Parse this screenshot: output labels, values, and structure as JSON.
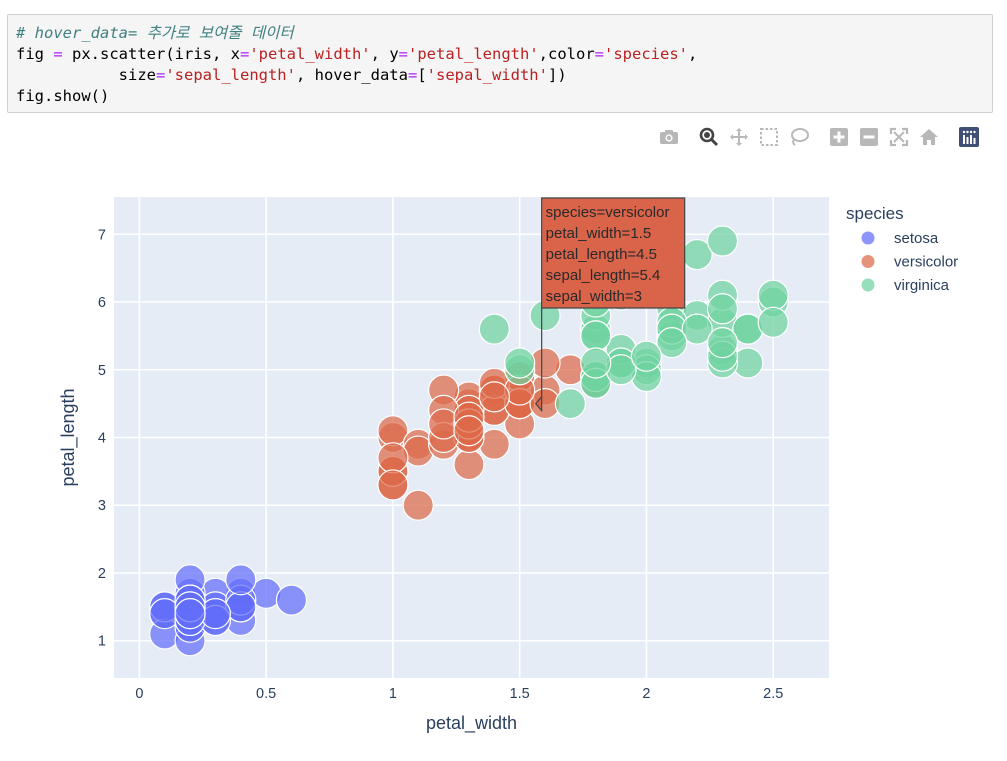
{
  "code": {
    "comment": "# hover_data= 추가로 보여줄 데이터",
    "line2_a": "fig ",
    "line2_eq": "=",
    "line2_b": " px.scatter(iris, x",
    "line2_eq2": "=",
    "line2_s1": "'petal_width'",
    "line2_c": ", y",
    "line2_eq3": "=",
    "line2_s2": "'petal_length'",
    "line2_d": ",color",
    "line2_eq4": "=",
    "line2_s3": "'species'",
    "line2_e": ",",
    "line3_a": "           size",
    "line3_eq": "=",
    "line3_s1": "'sepal_length'",
    "line3_b": ", hover_data",
    "line3_eq2": "=",
    "line3_c": "[",
    "line3_s2": "'sepal_width'",
    "line3_d": "])",
    "line4": "fig.show()"
  },
  "toolbar": {
    "items": [
      "camera-icon",
      "zoom-icon",
      "pan-icon",
      "box-select-icon",
      "lasso-select-icon",
      "zoom-in-icon",
      "zoom-out-icon",
      "autoscale-icon",
      "reset-axes-icon",
      "plotly-logo-icon"
    ]
  },
  "colors": {
    "setosa": "#636efa",
    "versicolor": "#dc6a4a",
    "virginica": "#6fd3a0",
    "plot_bg": "#e5ecf6",
    "hover_bg": "#d9644a"
  },
  "chart_data": {
    "type": "scatter",
    "xlabel": "petal_width",
    "ylabel": "petal_length",
    "xlim": [
      -0.1,
      2.72
    ],
    "ylim": [
      0.45,
      7.55
    ],
    "xticks": [
      0,
      0.5,
      1,
      1.5,
      2,
      2.5
    ],
    "xtick_labels": [
      "0",
      "0.5",
      "1",
      "1.5",
      "2",
      "2.5"
    ],
    "yticks": [
      1,
      2,
      3,
      4,
      5,
      6,
      7
    ],
    "ytick_labels": [
      "1",
      "2",
      "3",
      "4",
      "5",
      "6",
      "7"
    ],
    "grid": true,
    "legend_title": "species",
    "legend_position": "right",
    "series": [
      {
        "name": "setosa",
        "points": [
          [
            0.2,
            1.4
          ],
          [
            0.2,
            1.4
          ],
          [
            0.2,
            1.3
          ],
          [
            0.2,
            1.5
          ],
          [
            0.2,
            1.4
          ],
          [
            0.4,
            1.7
          ],
          [
            0.3,
            1.4
          ],
          [
            0.2,
            1.5
          ],
          [
            0.2,
            1.4
          ],
          [
            0.1,
            1.5
          ],
          [
            0.2,
            1.5
          ],
          [
            0.2,
            1.6
          ],
          [
            0.1,
            1.4
          ],
          [
            0.1,
            1.1
          ],
          [
            0.2,
            1.2
          ],
          [
            0.4,
            1.5
          ],
          [
            0.4,
            1.3
          ],
          [
            0.3,
            1.4
          ],
          [
            0.3,
            1.7
          ],
          [
            0.3,
            1.5
          ],
          [
            0.2,
            1.7
          ],
          [
            0.4,
            1.5
          ],
          [
            0.2,
            1.0
          ],
          [
            0.5,
            1.7
          ],
          [
            0.2,
            1.9
          ],
          [
            0.2,
            1.6
          ],
          [
            0.4,
            1.6
          ],
          [
            0.2,
            1.5
          ],
          [
            0.2,
            1.4
          ],
          [
            0.2,
            1.6
          ],
          [
            0.2,
            1.6
          ],
          [
            0.4,
            1.5
          ],
          [
            0.1,
            1.5
          ],
          [
            0.2,
            1.4
          ],
          [
            0.2,
            1.5
          ],
          [
            0.2,
            1.2
          ],
          [
            0.2,
            1.3
          ],
          [
            0.1,
            1.4
          ],
          [
            0.2,
            1.3
          ],
          [
            0.2,
            1.5
          ],
          [
            0.3,
            1.3
          ],
          [
            0.3,
            1.3
          ],
          [
            0.2,
            1.3
          ],
          [
            0.6,
            1.6
          ],
          [
            0.4,
            1.9
          ],
          [
            0.3,
            1.4
          ],
          [
            0.2,
            1.6
          ],
          [
            0.2,
            1.4
          ],
          [
            0.2,
            1.5
          ],
          [
            0.2,
            1.4
          ]
        ]
      },
      {
        "name": "versicolor",
        "points": [
          [
            1.4,
            4.7
          ],
          [
            1.5,
            4.5
          ],
          [
            1.5,
            4.9
          ],
          [
            1.3,
            4.0
          ],
          [
            1.5,
            4.6
          ],
          [
            1.3,
            4.5
          ],
          [
            1.6,
            4.7
          ],
          [
            1.0,
            3.3
          ],
          [
            1.3,
            4.6
          ],
          [
            1.4,
            3.9
          ],
          [
            1.0,
            3.5
          ],
          [
            1.5,
            4.2
          ],
          [
            1.0,
            4.0
          ],
          [
            1.4,
            4.7
          ],
          [
            1.3,
            3.6
          ],
          [
            1.4,
            4.4
          ],
          [
            1.5,
            4.5
          ],
          [
            1.0,
            4.1
          ],
          [
            1.5,
            4.5
          ],
          [
            1.1,
            3.9
          ],
          [
            1.8,
            4.8
          ],
          [
            1.3,
            4.0
          ],
          [
            1.5,
            4.9
          ],
          [
            1.2,
            4.7
          ],
          [
            1.3,
            4.3
          ],
          [
            1.4,
            4.4
          ],
          [
            1.4,
            4.8
          ],
          [
            1.7,
            5.0
          ],
          [
            1.5,
            4.5
          ],
          [
            1.0,
            3.5
          ],
          [
            1.1,
            3.8
          ],
          [
            1.0,
            3.7
          ],
          [
            1.2,
            3.9
          ],
          [
            1.6,
            5.1
          ],
          [
            1.5,
            4.5
          ],
          [
            1.6,
            4.5
          ],
          [
            1.5,
            4.7
          ],
          [
            1.3,
            4.4
          ],
          [
            1.3,
            4.1
          ],
          [
            1.3,
            4.0
          ],
          [
            1.2,
            4.4
          ],
          [
            1.4,
            4.6
          ],
          [
            1.2,
            4.0
          ],
          [
            1.0,
            3.3
          ],
          [
            1.3,
            4.2
          ],
          [
            1.2,
            4.2
          ],
          [
            1.3,
            4.2
          ],
          [
            1.3,
            4.3
          ],
          [
            1.1,
            3.0
          ],
          [
            1.3,
            4.1
          ]
        ]
      },
      {
        "name": "virginica",
        "points": [
          [
            2.5,
            6.0
          ],
          [
            1.9,
            5.1
          ],
          [
            2.1,
            5.9
          ],
          [
            1.8,
            5.6
          ],
          [
            2.2,
            5.8
          ],
          [
            2.1,
            6.6
          ],
          [
            1.7,
            4.5
          ],
          [
            1.8,
            6.3
          ],
          [
            1.8,
            5.8
          ],
          [
            2.5,
            6.1
          ],
          [
            2.0,
            5.1
          ],
          [
            1.9,
            5.3
          ],
          [
            2.1,
            5.5
          ],
          [
            2.0,
            5.0
          ],
          [
            2.4,
            5.1
          ],
          [
            2.3,
            5.3
          ],
          [
            1.8,
            5.5
          ],
          [
            2.2,
            6.7
          ],
          [
            2.3,
            6.9
          ],
          [
            1.5,
            5.0
          ],
          [
            2.3,
            5.7
          ],
          [
            2.0,
            4.9
          ],
          [
            2.0,
            6.7
          ],
          [
            1.8,
            4.9
          ],
          [
            2.1,
            5.7
          ],
          [
            1.8,
            6.0
          ],
          [
            1.8,
            4.8
          ],
          [
            1.8,
            4.9
          ],
          [
            2.1,
            5.6
          ],
          [
            1.6,
            5.8
          ],
          [
            1.9,
            6.1
          ],
          [
            2.0,
            6.4
          ],
          [
            2.2,
            5.6
          ],
          [
            1.5,
            5.1
          ],
          [
            1.4,
            5.6
          ],
          [
            2.3,
            6.1
          ],
          [
            2.4,
            5.6
          ],
          [
            1.8,
            5.5
          ],
          [
            1.8,
            4.8
          ],
          [
            2.1,
            5.4
          ],
          [
            2.4,
            5.6
          ],
          [
            2.3,
            5.1
          ],
          [
            1.9,
            5.1
          ],
          [
            2.3,
            5.9
          ],
          [
            2.5,
            5.7
          ],
          [
            2.3,
            5.2
          ],
          [
            1.9,
            5.0
          ],
          [
            2.0,
            5.2
          ],
          [
            2.3,
            5.4
          ],
          [
            1.8,
            5.1
          ]
        ]
      }
    ],
    "hover": {
      "lines": [
        "species=versicolor",
        "petal_width=1.5",
        "petal_length=4.5",
        "sepal_length=5.4",
        "sepal_width=3"
      ],
      "point": [
        1.5,
        4.5
      ]
    }
  }
}
